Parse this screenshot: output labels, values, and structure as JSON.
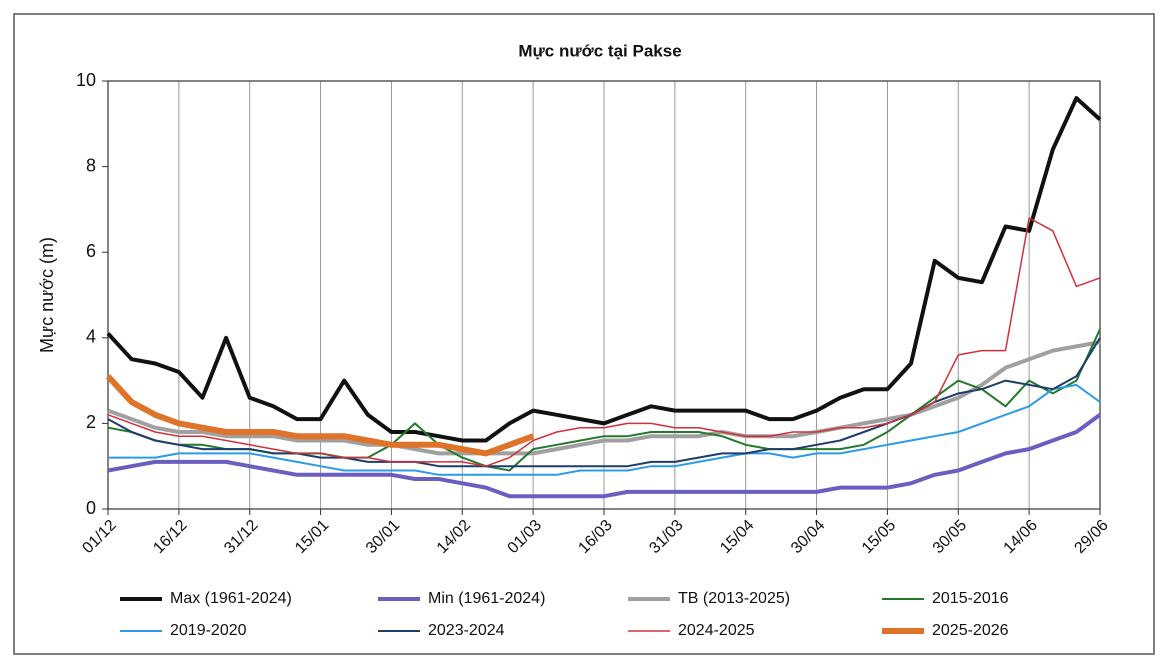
{
  "chart_data": {
    "type": "line",
    "title": "Mực nước tại Pakse",
    "y_label": "Mực nước (m)",
    "categories": [
      "01/12",
      null,
      null,
      "16/12",
      null,
      null,
      "31/12",
      null,
      null,
      "15/01",
      null,
      null,
      "30/01",
      null,
      null,
      "14/02",
      null,
      null,
      "01/03",
      null,
      null,
      "16/03",
      null,
      null,
      "31/03",
      null,
      null,
      "15/04",
      null,
      null,
      "30/04",
      null,
      null,
      "15/05",
      null,
      null,
      "30/05",
      null,
      null,
      "14/06",
      null,
      null,
      "29/06"
    ],
    "ylim": [
      0,
      10
    ],
    "yticks": [
      0,
      2,
      4,
      6,
      8,
      10
    ],
    "grid": true,
    "series": [
      {
        "name": "Max (1961-2024)",
        "color": "#111111",
        "width": 4,
        "values": [
          4.1,
          3.5,
          3.4,
          3.2,
          2.6,
          4.0,
          2.6,
          2.4,
          2.1,
          2.1,
          3.0,
          2.2,
          1.8,
          1.8,
          1.7,
          1.6,
          1.6,
          2.0,
          2.3,
          2.2,
          2.1,
          2.0,
          2.2,
          2.4,
          2.3,
          2.3,
          2.3,
          2.3,
          2.1,
          2.1,
          2.3,
          2.6,
          2.8,
          2.8,
          3.4,
          5.8,
          5.4,
          5.3,
          6.6,
          6.5,
          8.4,
          9.6,
          9.1
        ]
      },
      {
        "name": "Min (1961-2024)",
        "color": "#6a5fc1",
        "width": 4,
        "values": [
          0.9,
          1.0,
          1.1,
          1.1,
          1.1,
          1.1,
          1.0,
          0.9,
          0.8,
          0.8,
          0.8,
          0.8,
          0.8,
          0.7,
          0.7,
          0.6,
          0.5,
          0.3,
          0.3,
          0.3,
          0.3,
          0.3,
          0.4,
          0.4,
          0.4,
          0.4,
          0.4,
          0.4,
          0.4,
          0.4,
          0.4,
          0.5,
          0.5,
          0.5,
          0.6,
          0.8,
          0.9,
          1.1,
          1.3,
          1.4,
          1.6,
          1.8,
          2.2
        ]
      },
      {
        "name": "TB (2013-2025)",
        "color": "#a0a0a0",
        "width": 4,
        "values": [
          2.3,
          2.1,
          1.9,
          1.8,
          1.8,
          1.7,
          1.7,
          1.7,
          1.6,
          1.6,
          1.6,
          1.5,
          1.5,
          1.4,
          1.3,
          1.3,
          1.3,
          1.3,
          1.3,
          1.4,
          1.5,
          1.6,
          1.6,
          1.7,
          1.7,
          1.7,
          1.8,
          1.7,
          1.7,
          1.7,
          1.8,
          1.9,
          2.0,
          2.1,
          2.2,
          2.4,
          2.6,
          2.9,
          3.3,
          3.5,
          3.7,
          3.8,
          3.9
        ]
      },
      {
        "name": "2015-2016",
        "color": "#237a2c",
        "width": 2,
        "values": [
          1.9,
          1.8,
          1.6,
          1.5,
          1.5,
          1.4,
          1.4,
          1.3,
          1.3,
          1.3,
          1.2,
          1.2,
          1.5,
          2.0,
          1.5,
          1.2,
          1.0,
          0.9,
          1.4,
          1.5,
          1.6,
          1.7,
          1.7,
          1.8,
          1.8,
          1.8,
          1.7,
          1.5,
          1.4,
          1.4,
          1.4,
          1.4,
          1.5,
          1.8,
          2.2,
          2.6,
          3.0,
          2.8,
          2.4,
          3.0,
          2.7,
          3.0,
          4.2
        ]
      },
      {
        "name": "2019-2020",
        "color": "#2b9be8",
        "width": 2,
        "values": [
          1.2,
          1.2,
          1.2,
          1.3,
          1.3,
          1.3,
          1.3,
          1.2,
          1.1,
          1.0,
          0.9,
          0.9,
          0.9,
          0.9,
          0.8,
          0.8,
          0.8,
          0.8,
          0.8,
          0.8,
          0.9,
          0.9,
          0.9,
          1.0,
          1.0,
          1.1,
          1.2,
          1.3,
          1.3,
          1.2,
          1.3,
          1.3,
          1.4,
          1.5,
          1.6,
          1.7,
          1.8,
          2.0,
          2.2,
          2.4,
          2.8,
          2.9,
          2.5
        ]
      },
      {
        "name": "2023-2024",
        "color": "#1f3d6b",
        "width": 2,
        "values": [
          2.1,
          1.8,
          1.6,
          1.5,
          1.4,
          1.4,
          1.4,
          1.3,
          1.3,
          1.2,
          1.2,
          1.1,
          1.1,
          1.1,
          1.0,
          1.0,
          1.0,
          1.0,
          1.0,
          1.0,
          1.0,
          1.0,
          1.0,
          1.1,
          1.1,
          1.2,
          1.3,
          1.3,
          1.4,
          1.4,
          1.5,
          1.6,
          1.8,
          2.0,
          2.2,
          2.5,
          2.7,
          2.8,
          3.0,
          2.9,
          2.8,
          3.1,
          4.0
        ]
      },
      {
        "name": "2024-2025",
        "color": "#d0313a",
        "width": 1.5,
        "values": [
          2.2,
          2.0,
          1.8,
          1.7,
          1.7,
          1.6,
          1.5,
          1.4,
          1.3,
          1.3,
          1.2,
          1.2,
          1.1,
          1.1,
          1.1,
          1.1,
          1.0,
          1.2,
          1.6,
          1.8,
          1.9,
          1.9,
          2.0,
          2.0,
          1.9,
          1.9,
          1.8,
          1.7,
          1.7,
          1.8,
          1.8,
          1.9,
          1.9,
          2.0,
          2.2,
          2.5,
          3.6,
          3.7,
          3.7,
          6.8,
          6.5,
          5.2,
          5.4
        ]
      },
      {
        "name": "2025-2026",
        "color": "#e0732a",
        "width": 6,
        "values": [
          3.1,
          2.5,
          2.2,
          2.0,
          1.9,
          1.8,
          1.8,
          1.8,
          1.7,
          1.7,
          1.7,
          1.6,
          1.5,
          1.5,
          1.5,
          1.4,
          1.3,
          1.5,
          1.7,
          null,
          null,
          null,
          null,
          null,
          null,
          null,
          null,
          null,
          null,
          null,
          null,
          null,
          null,
          null,
          null,
          null,
          null,
          null,
          null,
          null,
          null,
          null,
          null
        ]
      }
    ]
  }
}
